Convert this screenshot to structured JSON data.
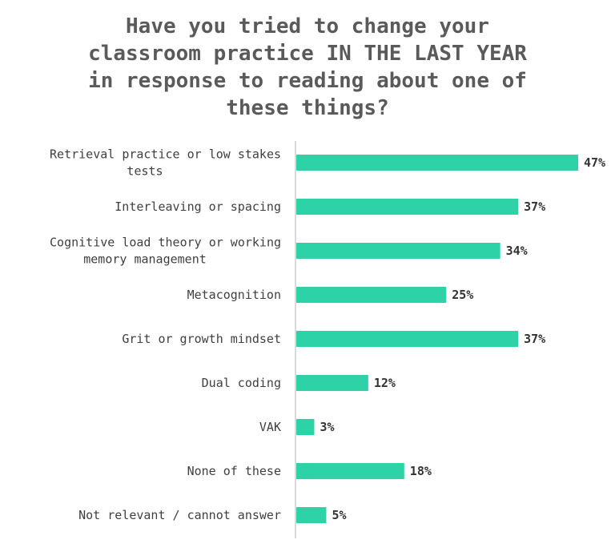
{
  "title_lines": [
    "Have you tried to change your",
    "classroom practice IN THE LAST YEAR",
    "in response to reading about one of",
    "these things?"
  ],
  "chart_data": {
    "type": "bar",
    "orientation": "horizontal",
    "title": "Have you tried to change your classroom practice IN THE LAST YEAR in response to reading about one of these things?",
    "categories": [
      [
        "Retrieval practice or low stakes",
        "tests"
      ],
      [
        "Interleaving or spacing"
      ],
      [
        "Cognitive load theory or working",
        "memory management"
      ],
      [
        "Metacognition"
      ],
      [
        "Grit or growth mindset"
      ],
      [
        "Dual coding"
      ],
      [
        "VAK"
      ],
      [
        "None of these"
      ],
      [
        "Not relevant / cannot answer"
      ]
    ],
    "values": [
      47,
      37,
      34,
      25,
      37,
      12,
      3,
      18,
      5
    ],
    "value_labels": [
      "47%",
      "37%",
      "34%",
      "25%",
      "37%",
      "12%",
      "3%",
      "18%",
      "5%"
    ],
    "bar_color": "#2dd3a6",
    "axis_color": "#d9d9d9",
    "xlim": [
      0,
      47
    ],
    "grid": false,
    "legend": "none"
  }
}
